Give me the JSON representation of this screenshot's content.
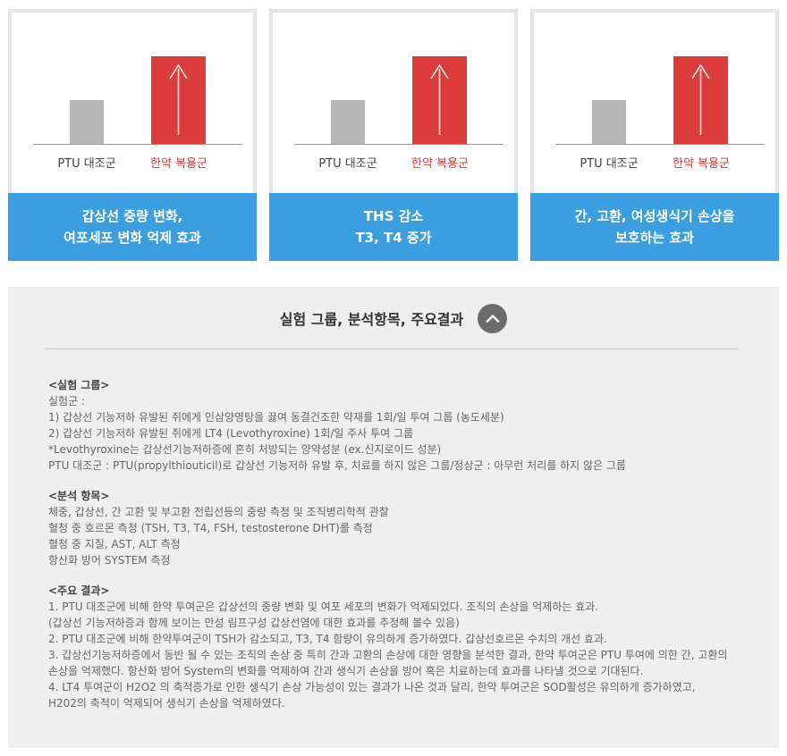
{
  "cards": [
    {
      "control_label": "PTU 대조군",
      "herb_label": "한약 복용군",
      "footer_lines": [
        "갑상선 중량 변화,",
        "여포세포 변화 억제 효과"
      ]
    },
    {
      "control_label": "PTU 대조군",
      "herb_label": "한약 복용군",
      "footer_lines": [
        "THS 감소",
        "T3, T4 증가"
      ]
    },
    {
      "control_label": "PTU 대조군",
      "herb_label": "한약 복용군",
      "footer_lines": [
        "간, 고환, 여성생식기 손상을",
        "보호하는 효과"
      ]
    }
  ],
  "colors": {
    "accent_blue": "#3a9ee0",
    "herb_red": "#dc3b3b",
    "control_gray": "#b8b8b8"
  },
  "panel": {
    "title": "실험 그룹, 분석항목, 주요결과",
    "toggle_icon": "chevron-up-icon",
    "sections": [
      {
        "heading": "<실험 그룹>",
        "lines": [
          "실험군 :",
          "1) 갑상선 기능저하 유발된 쥐에게 인삼양영탕을 끓여 동결건조한 약재를 1회/일 투여 그룹 (농도세분)",
          "2) 갑상선 기능저하 유발된 쥐에게 LT4 (Levothyroxine) 1회/일 주사 투여 그룹",
          "*Levothyroxine는 갑상선기능저하증에 흔히 처방되는 양약성분 (ex.신지로이드 성분)",
          "PTU 대조군 : PTU(propylthiouticil)로 갑상선 기능저하 유발 후, 치료를 하지 않은 그룹/정상군 : 아무런 처리를 하지 않은 그룹"
        ]
      },
      {
        "heading": "<분석 항목>",
        "lines": [
          "체중, 갑상선, 간 고환 및 부고환 전립선등의 중량 측정 및 조직병리학적 관찰",
          "혈청 중 호르몬 측정 (TSH, T3, T4, FSH, testosterone DHT)를 측정",
          "혈청 중 지질, AST, ALT 측정",
          "항산화 방어 SYSTEM 측정"
        ]
      },
      {
        "heading": "<주요 결과>",
        "lines": [
          "1. PTU 대조군에 비해 한약 투여군은 갑상선의 중량 변화 및 여포 세포의 변화가 억제되었다. 조직의 손상을 억제하는 효과.",
          "(갑상선 기능저하증과 함께 보이는 만성 림프구성 갑상선염에 대한 효과를 추정해 볼수 있음)",
          "2. PTU 대조군에 비해 한약투여군이 TSH가 감소되고, T3, T4 함량이 유의하게 증가하였다. 갑상선호르몬 수치의 개선 효과.",
          "3. 갑상선기능저하증에서 동반 될 수 있는 조직의 손상 중 특히 간과 고환의 손상에 대한 영향을 분석한 결과, 한약 투여군은 PTU 투여에 의한 간, 고환의",
          "손상을 억제했다. 항산화 방어 System의 변화를 억제하여 간과 생식기 손상을 방어 혹은 치료하는데 효과를 나타낼 것으로 기대된다.",
          "4. LT4 투여군이 H2O2 의 축적증가로 인한 생식기 손상 가능성이 있는 결과가 나온 것과 달리, 한약 투여군은 SOD활성은 유의하게 증가하였고,",
          "H202의 축적이 억제되어 생식기 손상을 억제하였다."
        ]
      }
    ]
  }
}
